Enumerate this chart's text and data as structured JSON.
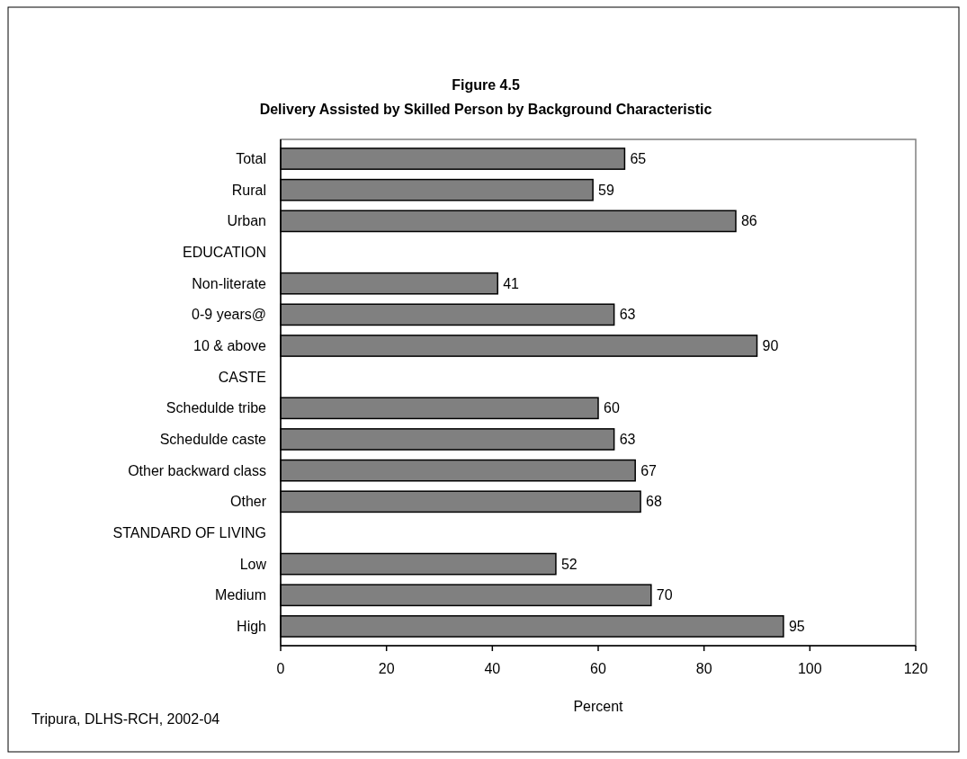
{
  "chart_data": {
    "type": "bar",
    "orientation": "horizontal",
    "title": "Figure 4.5",
    "subtitle": "Delivery Assisted by Skilled Person by Background Characteristic",
    "categories": [
      "Total",
      "Rural",
      "Urban",
      "EDUCATION",
      "Non-literate",
      "0-9 years@",
      "10 & above",
      "CASTE",
      "Schedulde tribe",
      "Schedulde caste",
      "Other backward class",
      "Other",
      "STANDARD OF LIVING",
      "Low",
      "Medium",
      "High"
    ],
    "values": [
      65,
      59,
      86,
      null,
      41,
      63,
      90,
      null,
      60,
      63,
      67,
      68,
      null,
      52,
      70,
      95
    ],
    "color": "#808080",
    "data_labels": true,
    "xlim": [
      0,
      120
    ],
    "xticks": [
      0,
      20,
      40,
      60,
      80,
      100,
      120
    ],
    "xlabel": "Percent",
    "grid": false,
    "annotations": [
      "Tripura, DLHS-RCH, 2002-04"
    ]
  }
}
